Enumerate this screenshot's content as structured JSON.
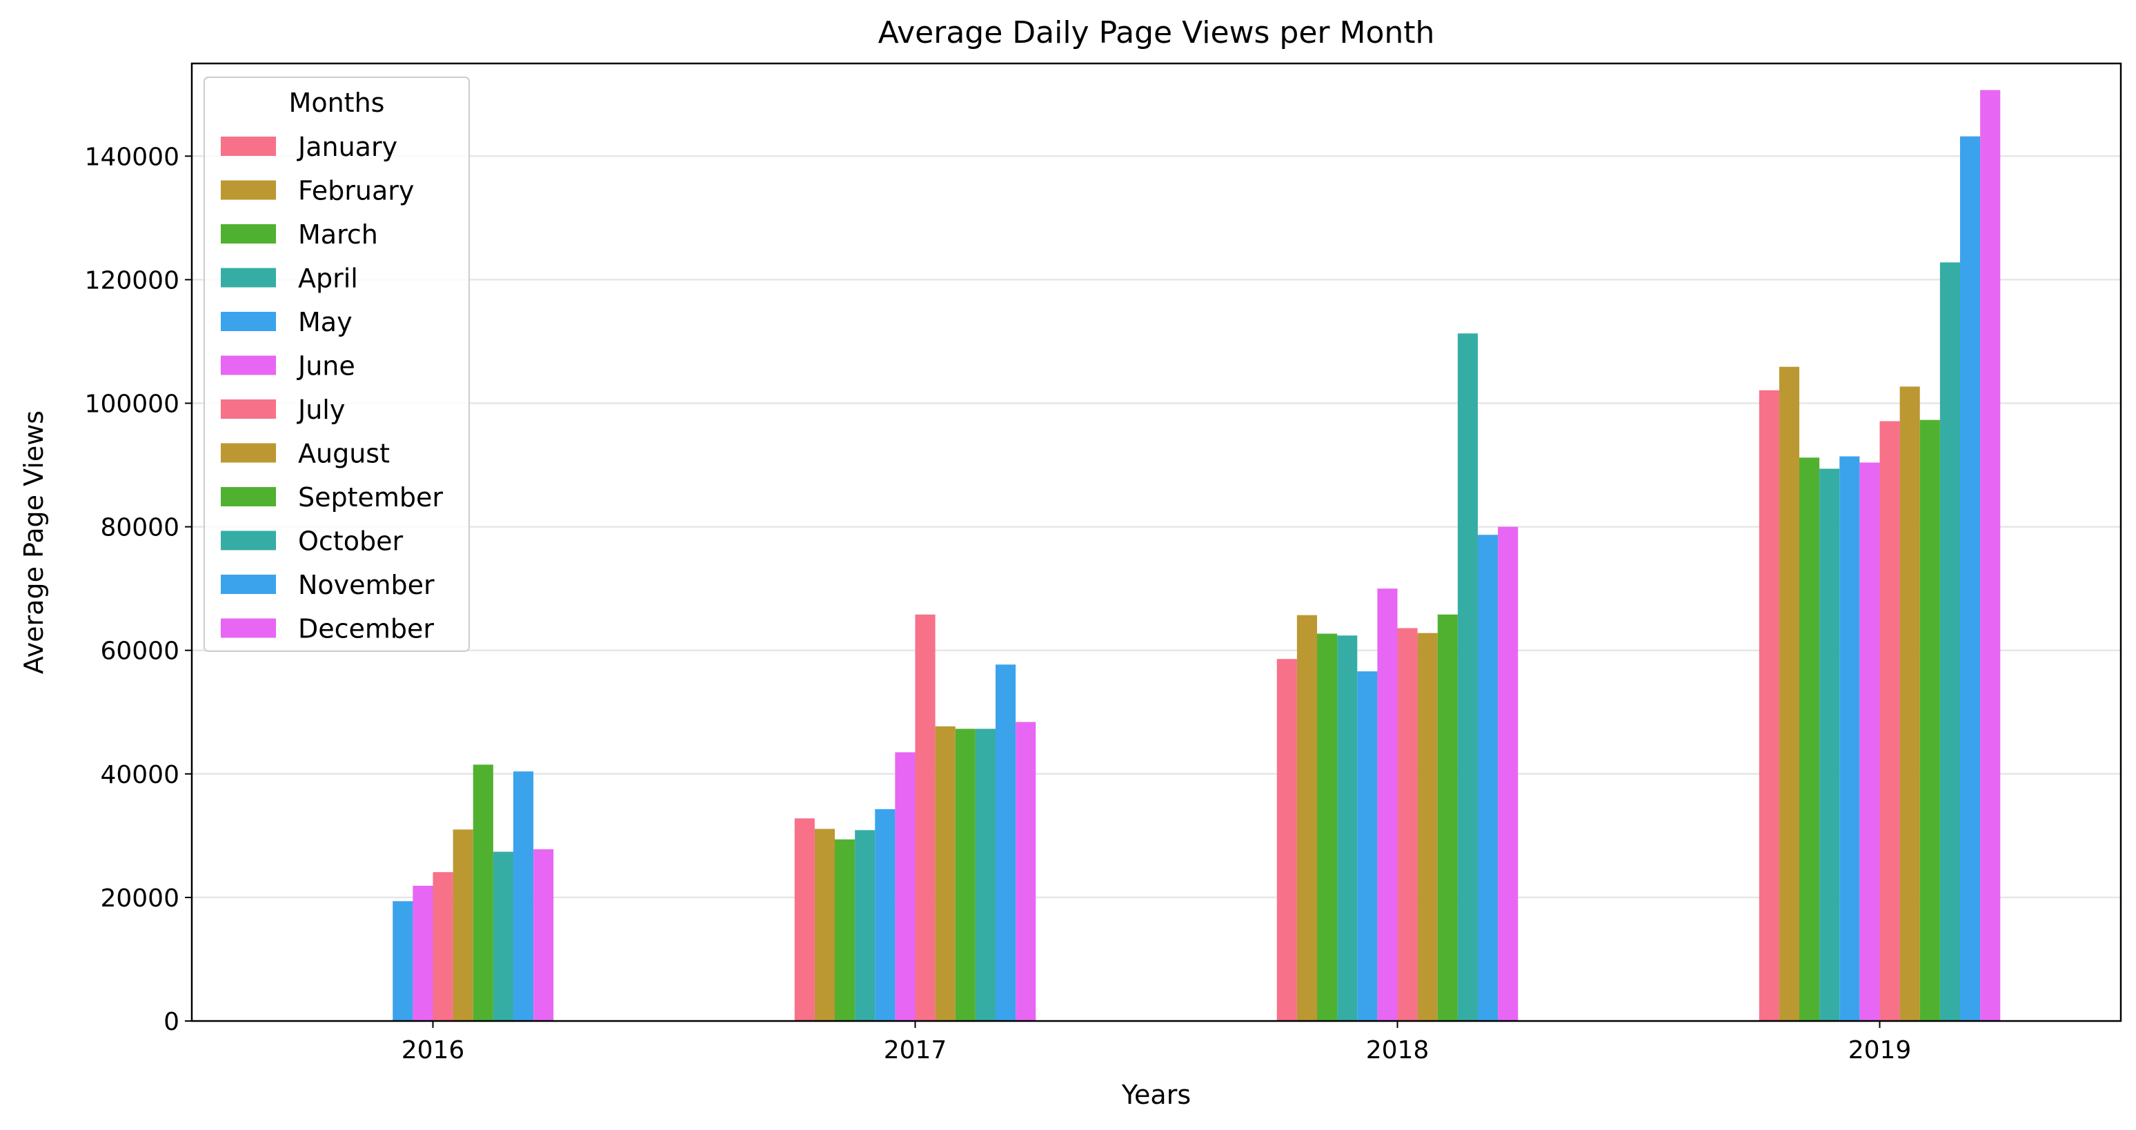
{
  "chart_data": {
    "type": "bar",
    "title": "Average Daily Page Views per Month",
    "xlabel": "Years",
    "ylabel": "Average Page Views",
    "categories": [
      "2016",
      "2017",
      "2018",
      "2019"
    ],
    "ylim": [
      0,
      155000
    ],
    "yticks": [
      "0",
      "20000",
      "40000",
      "60000",
      "80000",
      "100000",
      "120000",
      "140000"
    ],
    "grid": "horizontal",
    "legend": {
      "title": "Months",
      "placement": "top-left"
    },
    "series": [
      {
        "name": "January",
        "color": "#f77189",
        "values": [
          null,
          32800,
          58600,
          102100
        ]
      },
      {
        "name": "February",
        "color": "#bb9832",
        "values": [
          null,
          31100,
          65700,
          105900
        ]
      },
      {
        "name": "March",
        "color": "#50b131",
        "values": [
          null,
          29400,
          62700,
          91200
        ]
      },
      {
        "name": "April",
        "color": "#36ada4",
        "values": [
          null,
          30900,
          62400,
          89400
        ]
      },
      {
        "name": "May",
        "color": "#3ba3ec",
        "values": [
          19400,
          34300,
          56600,
          91400
        ]
      },
      {
        "name": "June",
        "color": "#e866f4",
        "values": [
          21900,
          43500,
          70000,
          90400
        ]
      },
      {
        "name": "July",
        "color": "#f77189",
        "values": [
          24100,
          65800,
          63600,
          97100
        ]
      },
      {
        "name": "August",
        "color": "#bb9832",
        "values": [
          31000,
          47700,
          62800,
          102700
        ]
      },
      {
        "name": "September",
        "color": "#50b131",
        "values": [
          41500,
          47300,
          65800,
          97300
        ]
      },
      {
        "name": "October",
        "color": "#36ada4",
        "values": [
          27400,
          47300,
          111300,
          122800
        ]
      },
      {
        "name": "November",
        "color": "#3ba3ec",
        "values": [
          40400,
          57700,
          78700,
          143200
        ]
      },
      {
        "name": "December",
        "color": "#e866f4",
        "values": [
          27800,
          48400,
          80000,
          150700
        ]
      }
    ]
  }
}
